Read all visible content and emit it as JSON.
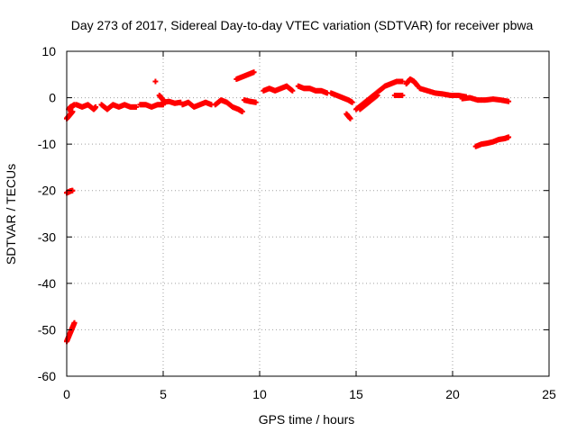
{
  "chart_data": {
    "type": "scatter",
    "title": "Day 273 of 2017, Sidereal Day-to-day VTEC variation (SDTVAR) for receiver pbwa",
    "xlabel": "GPS time / hours",
    "ylabel": "SDTVAR / TECUs",
    "xlim": [
      0,
      25
    ],
    "ylim": [
      -60,
      10
    ],
    "xticks": [
      0,
      5,
      10,
      15,
      20,
      25
    ],
    "yticks": [
      -60,
      -50,
      -40,
      -30,
      -20,
      -10,
      0,
      10
    ],
    "grid": true,
    "marker": "plus",
    "color": "#ff0000",
    "series": [
      {
        "name": "SDTVAR",
        "segments": [
          {
            "x": [
              0.0,
              0.1,
              0.2,
              0.3,
              0.4
            ],
            "y": [
              -52.5,
              -51.5,
              -50.5,
              -49.5,
              -48.5
            ]
          },
          {
            "x": [
              0.0,
              0.1,
              0.2,
              0.3
            ],
            "y": [
              -20.5,
              -20.3,
              -20.1,
              -20.0
            ]
          },
          {
            "x": [
              0.0,
              0.1,
              0.2,
              0.3
            ],
            "y": [
              -4.5,
              -4.0,
              -3.5,
              -3.0
            ]
          },
          {
            "x": [
              0.1,
              0.2,
              0.3,
              0.4
            ],
            "y": [
              -2.5,
              -2.0,
              -1.8,
              -1.5
            ]
          },
          {
            "x": [
              0.5,
              0.8,
              1.1,
              1.4,
              1.5
            ],
            "y": [
              -1.5,
              -2.0,
              -1.5,
              -2.5,
              -2.0
            ]
          },
          {
            "x": [
              1.8,
              2.1,
              2.4,
              2.7,
              3.0,
              3.3,
              3.6
            ],
            "y": [
              -1.5,
              -2.5,
              -1.5,
              -2.0,
              -1.5,
              -2.0,
              -2.0
            ]
          },
          {
            "x": [
              3.8,
              4.1,
              4.4,
              4.7,
              5.0
            ],
            "y": [
              -1.5,
              -1.5,
              -2.0,
              -1.5,
              -1.5
            ]
          },
          {
            "x": [
              4.6
            ],
            "y": [
              3.5
            ]
          },
          {
            "x": [
              4.8,
              5.0
            ],
            "y": [
              0.5,
              -0.5
            ]
          },
          {
            "x": [
              5.0,
              5.3,
              5.6,
              5.9
            ],
            "y": [
              -1.0,
              -0.8,
              -1.2,
              -1.0
            ]
          },
          {
            "x": [
              6.0,
              6.3,
              6.6,
              6.9,
              7.2,
              7.5
            ],
            "y": [
              -1.5,
              -1.0,
              -2.0,
              -1.5,
              -1.0,
              -1.5
            ]
          },
          {
            "x": [
              7.7,
              8.0,
              8.3,
              8.6,
              8.9,
              9.1
            ],
            "y": [
              -1.5,
              -0.5,
              -1.0,
              -2.0,
              -2.5,
              -3.0
            ]
          },
          {
            "x": [
              8.8,
              9.1,
              9.4,
              9.7
            ],
            "y": [
              4.0,
              4.5,
              5.0,
              5.5
            ]
          },
          {
            "x": [
              9.2,
              9.5,
              9.8
            ],
            "y": [
              -0.5,
              -0.8,
              -1.0
            ]
          },
          {
            "x": [
              10.2,
              10.5,
              10.8,
              11.1,
              11.4,
              11.7
            ],
            "y": [
              1.5,
              2.0,
              1.5,
              2.0,
              2.5,
              1.5
            ]
          },
          {
            "x": [
              12.0,
              12.3,
              12.6,
              12.9,
              13.2,
              13.5
            ],
            "y": [
              2.5,
              2.0,
              2.0,
              1.5,
              1.5,
              1.0
            ]
          },
          {
            "x": [
              13.7,
              14.0,
              14.3,
              14.6,
              14.8
            ],
            "y": [
              1.0,
              0.5,
              0.0,
              -0.5,
              -1.0
            ]
          },
          {
            "x": [
              14.5,
              14.7
            ],
            "y": [
              -3.5,
              -4.5
            ]
          },
          {
            "x": [
              15.0,
              15.3,
              15.6,
              15.9,
              16.2,
              16.5,
              16.8,
              17.1,
              17.4
            ],
            "y": [
              -2.5,
              -1.5,
              -0.5,
              0.5,
              1.5,
              2.5,
              3.0,
              3.5,
              3.5
            ]
          },
          {
            "x": [
              15.2,
              15.5,
              15.8,
              16.1
            ],
            "y": [
              -2.5,
              -1.5,
              -0.5,
              0.5
            ]
          },
          {
            "x": [
              17.0,
              17.4
            ],
            "y": [
              0.5,
              0.5
            ]
          },
          {
            "x": [
              17.6,
              17.8,
              18.0,
              18.2
            ],
            "y": [
              3.0,
              4.0,
              3.5,
              2.5
            ]
          },
          {
            "x": [
              18.3,
              18.7,
              19.1,
              19.5,
              19.9,
              20.3,
              20.7
            ],
            "y": [
              2.0,
              1.5,
              1.0,
              0.8,
              0.5,
              0.5,
              0.2
            ]
          },
          {
            "x": [
              20.5,
              20.9,
              21.3,
              21.7,
              22.1,
              22.5,
              22.9
            ],
            "y": [
              -0.2,
              0.0,
              -0.5,
              -0.5,
              -0.3,
              -0.5,
              -0.8
            ]
          },
          {
            "x": [
              21.2,
              21.5,
              21.8,
              22.1,
              22.4,
              22.7,
              22.9
            ],
            "y": [
              -10.5,
              -10.0,
              -9.8,
              -9.5,
              -9.0,
              -8.8,
              -8.5
            ]
          }
        ]
      }
    ]
  }
}
